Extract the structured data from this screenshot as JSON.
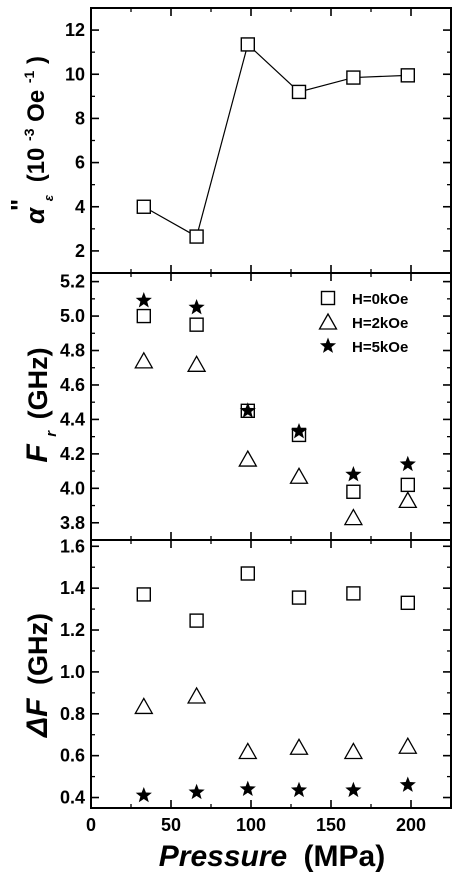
{
  "chart_data": [
    {
      "type": "line",
      "panel": "top",
      "ylabel": "α\"ε (10^-3 Oe^-1)",
      "ylabel_parts": {
        "alpha": "α",
        "dprime": "\"",
        "sub": "ε",
        "units_open": "(10",
        "units_exp1": "-3",
        "units_mid": "Oe",
        "units_exp2": "-1",
        "units_close": ")"
      },
      "xlim": [
        0,
        225
      ],
      "ylim": [
        1,
        13
      ],
      "yticks": [
        2,
        4,
        6,
        8,
        10,
        12
      ],
      "grid": false,
      "series": [
        {
          "marker": "square-open",
          "x": [
            33,
            66,
            98,
            130,
            164,
            198
          ],
          "y": [
            4.0,
            2.65,
            11.35,
            9.2,
            9.85,
            9.95
          ]
        }
      ]
    },
    {
      "type": "scatter",
      "panel": "middle",
      "ylabel": "Fr (GHz)",
      "ylabel_parts": {
        "main": "F",
        "sub": "r",
        "units": "(GHz)"
      },
      "xlim": [
        0,
        225
      ],
      "ylim": [
        3.7,
        5.25
      ],
      "yticks": [
        3.8,
        4.0,
        4.2,
        4.4,
        4.6,
        4.8,
        5.0,
        5.2
      ],
      "grid": false,
      "legend_position": "top-right",
      "series": [
        {
          "name": "H=0kOe",
          "marker": "square-open",
          "x": [
            33,
            66,
            98,
            130,
            164,
            198
          ],
          "y": [
            5.0,
            4.95,
            4.45,
            4.31,
            3.98,
            4.02
          ]
        },
        {
          "name": "H=2kOe",
          "marker": "triangle-open",
          "x": [
            33,
            66,
            98,
            130,
            164,
            198
          ],
          "y": [
            4.74,
            4.72,
            4.17,
            4.07,
            3.83,
            3.93
          ]
        },
        {
          "name": "H=5kOe",
          "marker": "star-filled",
          "x": [
            33,
            66,
            98,
            130,
            164,
            198
          ],
          "y": [
            5.09,
            5.05,
            4.45,
            4.33,
            4.08,
            4.14
          ]
        }
      ]
    },
    {
      "type": "scatter",
      "panel": "bottom",
      "ylabel": "ΔF (GHz)",
      "ylabel_parts": {
        "main": "ΔF",
        "units": "(GHz)"
      },
      "xlabel": "Pressure (MPa)",
      "xlabel_parts": {
        "main": "Pressure",
        "units": "(MPa)"
      },
      "xlim": [
        0,
        225
      ],
      "xticks": [
        0,
        50,
        100,
        150,
        200
      ],
      "ylim": [
        0.35,
        1.63
      ],
      "yticks": [
        0.4,
        0.6,
        0.8,
        1.0,
        1.2,
        1.4,
        1.6
      ],
      "grid": false,
      "series": [
        {
          "marker": "square-open",
          "x": [
            33,
            66,
            98,
            130,
            164,
            198
          ],
          "y": [
            1.37,
            1.245,
            1.47,
            1.355,
            1.375,
            1.33
          ]
        },
        {
          "marker": "triangle-open",
          "x": [
            33,
            66,
            98,
            130,
            164,
            198
          ],
          "y": [
            0.835,
            0.885,
            0.62,
            0.64,
            0.62,
            0.645
          ]
        },
        {
          "marker": "star-filled",
          "x": [
            33,
            66,
            98,
            130,
            164,
            198
          ],
          "y": [
            0.41,
            0.425,
            0.44,
            0.435,
            0.435,
            0.46
          ]
        }
      ]
    }
  ]
}
